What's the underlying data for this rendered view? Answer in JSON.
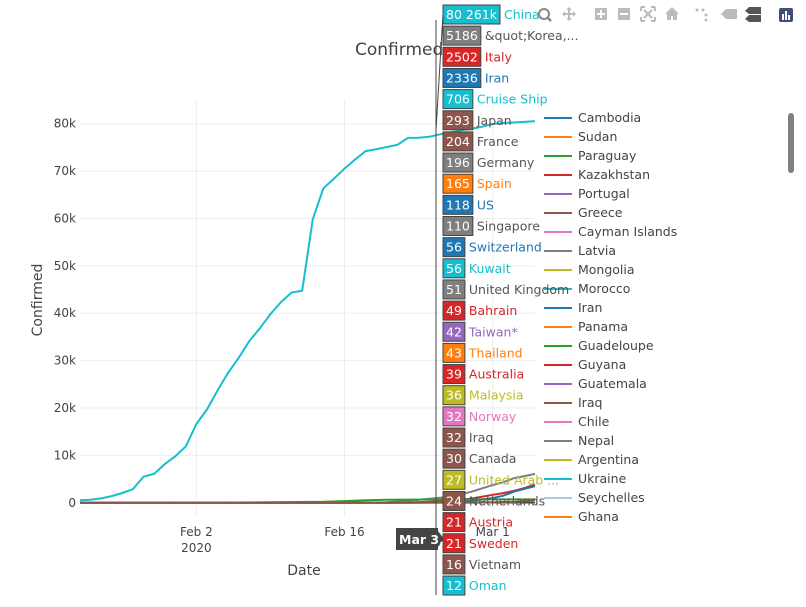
{
  "chart_data": {
    "type": "line",
    "title": "Confirmed",
    "xlabel": "Date",
    "ylabel": "Confirmed",
    "x_ticks": [
      {
        "date": "2020-02-02",
        "label": "Feb 2",
        "sublabel": "2020"
      },
      {
        "date": "2020-02-16",
        "label": "Feb 16",
        "sublabel": ""
      },
      {
        "date": "2020-03-01",
        "label": "Mar 1",
        "sublabel": ""
      }
    ],
    "xlim": [
      "2020-01-22",
      "2020-03-05"
    ],
    "ylim": [
      -3000,
      85000
    ],
    "y_ticks": [
      {
        "value": 0,
        "label": "0"
      },
      {
        "value": 10000,
        "label": "10k"
      },
      {
        "value": 20000,
        "label": "20k"
      },
      {
        "value": 30000,
        "label": "30k"
      },
      {
        "value": 40000,
        "label": "40k"
      },
      {
        "value": 50000,
        "label": "50k"
      },
      {
        "value": 60000,
        "label": "60k"
      },
      {
        "value": 70000,
        "label": "70k"
      },
      {
        "value": 80000,
        "label": "80k"
      }
    ],
    "grid": true,
    "hover": {
      "date_label": "Mar 3,",
      "items": [
        {
          "value": "80 261k",
          "name": "China",
          "color": "#17becf"
        },
        {
          "value": "5186",
          "name": "&quot;Korea,...",
          "color": "#7f7f7f"
        },
        {
          "value": "2502",
          "name": "Italy",
          "color": "#d62728"
        },
        {
          "value": "2336",
          "name": "Iran",
          "color": "#1f77b4"
        },
        {
          "value": "706",
          "name": "Cruise Ship",
          "color": "#17becf"
        },
        {
          "value": "293",
          "name": "Japan",
          "color": "#8c564b"
        },
        {
          "value": "204",
          "name": "France",
          "color": "#8c564b"
        },
        {
          "value": "196",
          "name": "Germany",
          "color": "#7f7f7f"
        },
        {
          "value": "165",
          "name": "Spain",
          "color": "#ff7f0e"
        },
        {
          "value": "118",
          "name": "US",
          "color": "#1f77b4"
        },
        {
          "value": "110",
          "name": "Singapore",
          "color": "#7f7f7f"
        },
        {
          "value": "56",
          "name": "Switzerland",
          "color": "#1f77b4"
        },
        {
          "value": "56",
          "name": "Kuwait",
          "color": "#17becf"
        },
        {
          "value": "51",
          "name": "United Kingdom",
          "color": "#7f7f7f"
        },
        {
          "value": "49",
          "name": "Bahrain",
          "color": "#d62728"
        },
        {
          "value": "42",
          "name": "Taiwan*",
          "color": "#9467bd"
        },
        {
          "value": "43",
          "name": "Thailand",
          "color": "#ff7f0e"
        },
        {
          "value": "39",
          "name": "Australia",
          "color": "#d62728"
        },
        {
          "value": "36",
          "name": "Malaysia",
          "color": "#bcbd22"
        },
        {
          "value": "32",
          "name": "Norway",
          "color": "#e377c2"
        },
        {
          "value": "32",
          "name": "Iraq",
          "color": "#8c564b"
        },
        {
          "value": "30",
          "name": "Canada",
          "color": "#8c564b"
        },
        {
          "value": "27",
          "name": "United Arab ...",
          "color": "#bcbd22"
        },
        {
          "value": "24",
          "name": "Netherlands",
          "color": "#8c564b"
        },
        {
          "value": "21",
          "name": "Austria",
          "color": "#d62728"
        },
        {
          "value": "21",
          "name": "Sweden",
          "color": "#d62728"
        },
        {
          "value": "16",
          "name": "Vietnam",
          "color": "#8c564b"
        },
        {
          "value": "12",
          "name": "Oman",
          "color": "#17becf"
        }
      ]
    },
    "legend": {
      "placement": "right",
      "items": [
        {
          "name": "Cambodia",
          "color": "#1f77b4"
        },
        {
          "name": "Sudan",
          "color": "#ff7f0e"
        },
        {
          "name": "Paraguay",
          "color": "#2ca02c"
        },
        {
          "name": "Kazakhstan",
          "color": "#d62728"
        },
        {
          "name": "Portugal",
          "color": "#9467bd"
        },
        {
          "name": "Greece",
          "color": "#8c564b"
        },
        {
          "name": "Cayman Islands",
          "color": "#e377c2"
        },
        {
          "name": "Latvia",
          "color": "#7f7f7f"
        },
        {
          "name": "Mongolia",
          "color": "#bcbd22"
        },
        {
          "name": "Morocco",
          "color": "#17becf"
        },
        {
          "name": "Iran",
          "color": "#1f77b4"
        },
        {
          "name": "Panama",
          "color": "#ff7f0e"
        },
        {
          "name": "Guadeloupe",
          "color": "#2ca02c"
        },
        {
          "name": "Guyana",
          "color": "#d62728"
        },
        {
          "name": "Guatemala",
          "color": "#9467bd"
        },
        {
          "name": "Iraq",
          "color": "#8c564b"
        },
        {
          "name": "Chile",
          "color": "#e377c2"
        },
        {
          "name": "Nepal",
          "color": "#7f7f7f"
        },
        {
          "name": "Argentina",
          "color": "#bcbd22"
        },
        {
          "name": "Ukraine",
          "color": "#17becf"
        },
        {
          "name": "Seychelles",
          "color": "#aec7e8",
          "muted": true
        },
        {
          "name": "Ghana",
          "color": "#ff7f0e"
        }
      ]
    },
    "series": [
      {
        "name": "China",
        "color": "#17becf",
        "points": [
          [
            "2020-01-22",
            548
          ],
          [
            "2020-01-23",
            643
          ],
          [
            "2020-01-24",
            920
          ],
          [
            "2020-01-25",
            1406
          ],
          [
            "2020-01-26",
            2075
          ],
          [
            "2020-01-27",
            2877
          ],
          [
            "2020-01-28",
            5509
          ],
          [
            "2020-01-29",
            6087
          ],
          [
            "2020-01-30",
            8141
          ],
          [
            "2020-01-31",
            9802
          ],
          [
            "2020-02-01",
            11891
          ],
          [
            "2020-02-02",
            16630
          ],
          [
            "2020-02-03",
            19716
          ],
          [
            "2020-02-04",
            23707
          ],
          [
            "2020-02-05",
            27440
          ],
          [
            "2020-02-06",
            30587
          ],
          [
            "2020-02-07",
            34110
          ],
          [
            "2020-02-08",
            36814
          ],
          [
            "2020-02-09",
            39829
          ],
          [
            "2020-02-10",
            42354
          ],
          [
            "2020-02-11",
            44386
          ],
          [
            "2020-02-12",
            44759
          ],
          [
            "2020-02-13",
            59895
          ],
          [
            "2020-02-14",
            66358
          ],
          [
            "2020-02-15",
            68413
          ],
          [
            "2020-02-16",
            70513
          ],
          [
            "2020-02-17",
            72434
          ],
          [
            "2020-02-18",
            74211
          ],
          [
            "2020-02-19",
            74619
          ],
          [
            "2020-02-20",
            75077
          ],
          [
            "2020-02-21",
            75550
          ],
          [
            "2020-02-22",
            77001
          ],
          [
            "2020-02-23",
            77022
          ],
          [
            "2020-02-24",
            77241
          ],
          [
            "2020-02-25",
            77754
          ],
          [
            "2020-02-26",
            78166
          ],
          [
            "2020-02-27",
            78600
          ],
          [
            "2020-02-28",
            78928
          ],
          [
            "2020-02-29",
            79356
          ],
          [
            "2020-03-01",
            79932
          ],
          [
            "2020-03-02",
            80136
          ],
          [
            "2020-03-03",
            80261
          ],
          [
            "2020-03-04",
            80386
          ],
          [
            "2020-03-05",
            80537
          ]
        ]
      },
      {
        "name": "&quot;Korea,...",
        "color": "#7f7f7f",
        "points": [
          [
            "2020-01-22",
            1
          ],
          [
            "2020-02-10",
            27
          ],
          [
            "2020-02-18",
            31
          ],
          [
            "2020-02-20",
            104
          ],
          [
            "2020-02-22",
            433
          ],
          [
            "2020-02-24",
            833
          ],
          [
            "2020-02-26",
            1261
          ],
          [
            "2020-02-28",
            2337
          ],
          [
            "2020-03-01",
            3736
          ],
          [
            "2020-03-02",
            4335
          ],
          [
            "2020-03-03",
            5186
          ],
          [
            "2020-03-04",
            5621
          ],
          [
            "2020-03-05",
            6088
          ]
        ]
      },
      {
        "name": "Italy",
        "color": "#d62728",
        "points": [
          [
            "2020-01-22",
            0
          ],
          [
            "2020-02-20",
            3
          ],
          [
            "2020-02-22",
            62
          ],
          [
            "2020-02-24",
            229
          ],
          [
            "2020-02-26",
            453
          ],
          [
            "2020-02-28",
            888
          ],
          [
            "2020-03-01",
            1694
          ],
          [
            "2020-03-02",
            2036
          ],
          [
            "2020-03-03",
            2502
          ],
          [
            "2020-03-04",
            3089
          ],
          [
            "2020-03-05",
            3858
          ]
        ]
      },
      {
        "name": "Iran",
        "color": "#1f77b4",
        "points": [
          [
            "2020-01-22",
            0
          ],
          [
            "2020-02-19",
            2
          ],
          [
            "2020-02-22",
            28
          ],
          [
            "2020-02-24",
            61
          ],
          [
            "2020-02-26",
            139
          ],
          [
            "2020-02-28",
            388
          ],
          [
            "2020-03-01",
            978
          ],
          [
            "2020-03-02",
            1501
          ],
          [
            "2020-03-03",
            2336
          ],
          [
            "2020-03-04",
            2922
          ],
          [
            "2020-03-05",
            3513
          ]
        ]
      },
      {
        "name": "Cruise Ship",
        "color": "#2ca02c",
        "points": [
          [
            "2020-01-22",
            0
          ],
          [
            "2020-02-06",
            61
          ],
          [
            "2020-02-10",
            135
          ],
          [
            "2020-02-14",
            218
          ],
          [
            "2020-02-16",
            355
          ],
          [
            "2020-02-18",
            542
          ],
          [
            "2020-02-20",
            634
          ],
          [
            "2020-02-24",
            691
          ],
          [
            "2020-02-28",
            705
          ],
          [
            "2020-03-03",
            706
          ],
          [
            "2020-03-05",
            706
          ]
        ]
      },
      {
        "name": "Germany",
        "color": "#8c564b",
        "points": [
          [
            "2020-01-22",
            0
          ],
          [
            "2020-02-24",
            16
          ],
          [
            "2020-02-28",
            48
          ],
          [
            "2020-03-01",
            130
          ],
          [
            "2020-03-03",
            196
          ],
          [
            "2020-03-05",
            482
          ]
        ]
      }
    ]
  }
}
